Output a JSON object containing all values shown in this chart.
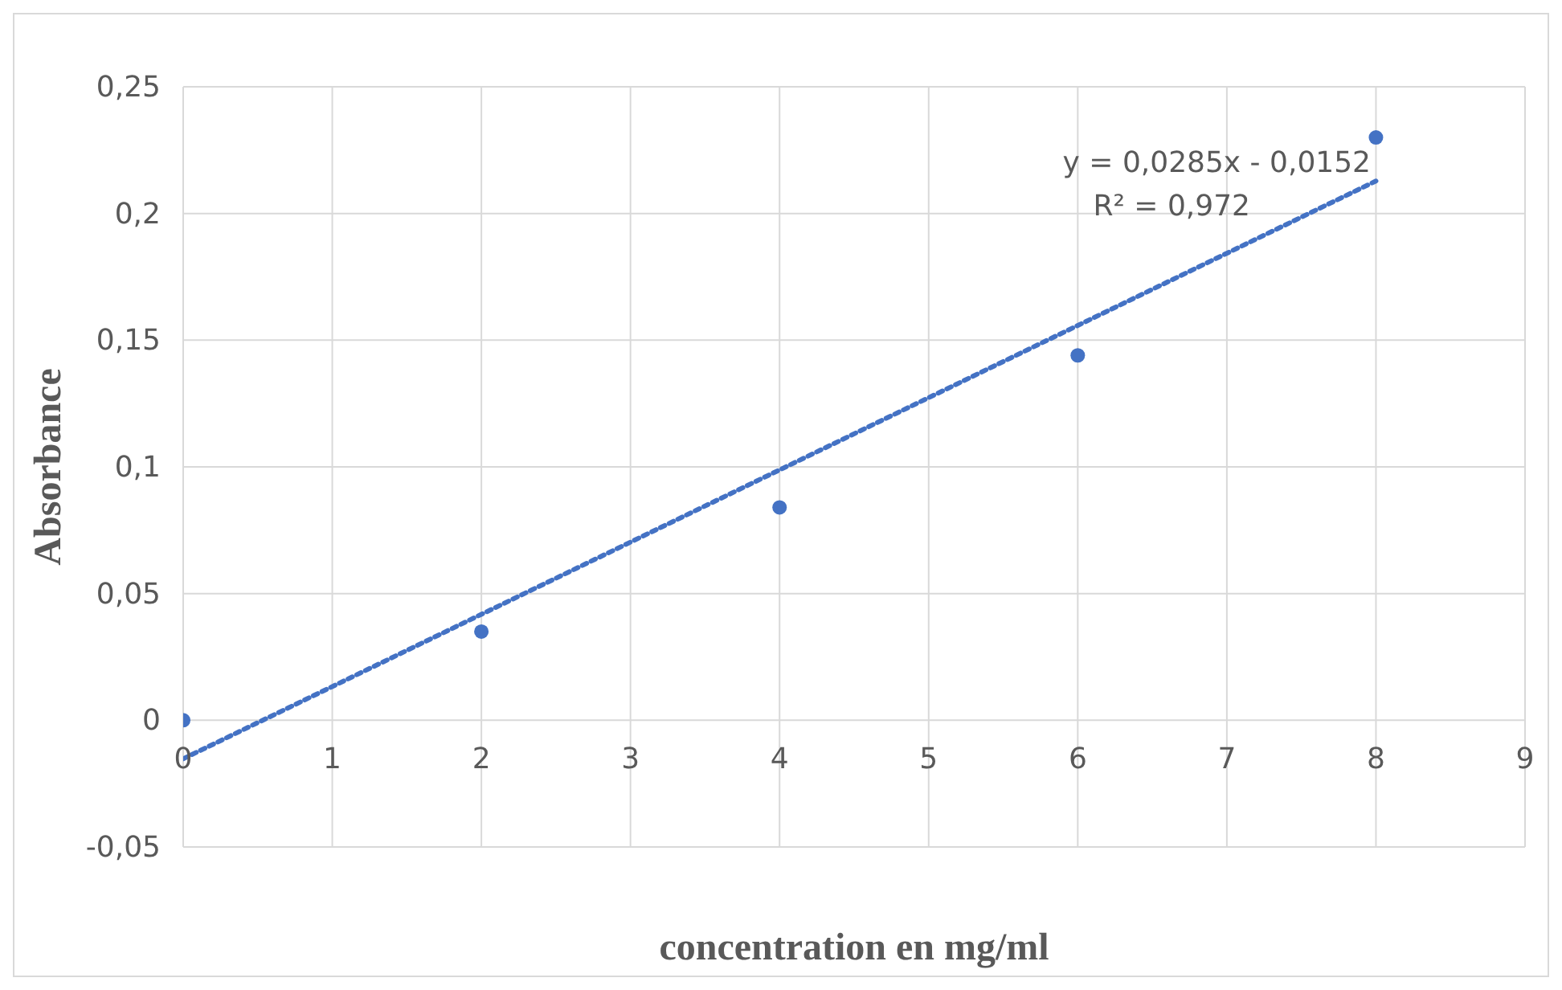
{
  "chart_data": {
    "type": "scatter",
    "xlabel": "concentration en mg/ml",
    "ylabel": "Absorbance",
    "x": [
      0,
      2,
      4,
      6,
      8
    ],
    "series": [
      {
        "color": "#4472c4",
        "marker": "circle",
        "values": [
          0,
          0.035,
          0.084,
          0.144,
          0.23
        ]
      },
      {
        "type": "line",
        "color": "#4472c4",
        "line_style": "dotted",
        "marker": "none",
        "x": [
          0,
          8
        ],
        "values": [
          -0.0152,
          0.2128
        ]
      }
    ],
    "xlim": [
      0,
      9
    ],
    "xticks": [
      0,
      1,
      2,
      3,
      4,
      5,
      6,
      7,
      8,
      9
    ],
    "ylim": [
      -0.05,
      0.25
    ],
    "yticks": [
      {
        "value": -0.05,
        "label": "-0,05"
      },
      {
        "value": 0,
        "label": "0"
      },
      {
        "value": 0.05,
        "label": "0,05"
      },
      {
        "value": 0.1,
        "label": "0,1"
      },
      {
        "value": 0.15,
        "label": "0,15"
      },
      {
        "value": 0.2,
        "label": "0,2"
      },
      {
        "value": 0.25,
        "label": "0,25"
      }
    ],
    "annotations": [
      "y = 0,0285x - 0,0152",
      "R² = 0,972"
    ],
    "grid": true
  }
}
